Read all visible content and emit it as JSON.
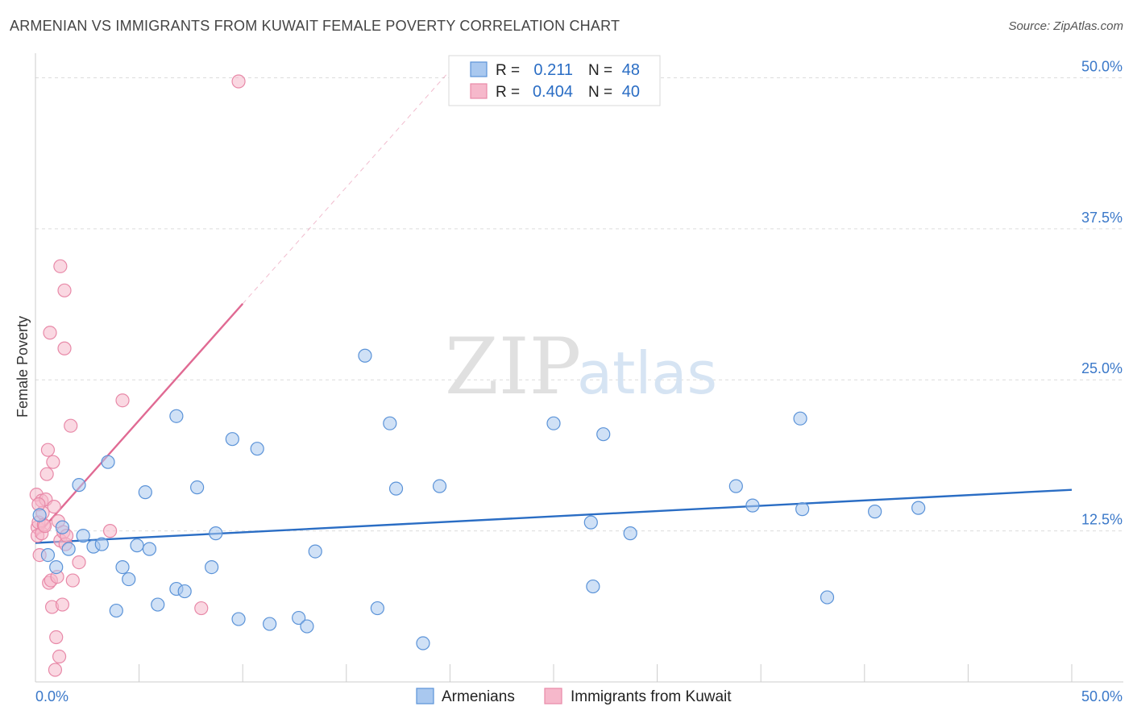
{
  "header": {
    "title": "ARMENIAN VS IMMIGRANTS FROM KUWAIT FEMALE POVERTY CORRELATION CHART",
    "source": "Source: ZipAtlas.com"
  },
  "watermark": {
    "part1": "ZIP",
    "part2": "atlas"
  },
  "stats": {
    "r_label": "R =",
    "n_label": "N =",
    "rows": [
      {
        "r": "0.211",
        "n": "48",
        "color": "#a9c8ef"
      },
      {
        "r": "0.404",
        "n": "40",
        "color": "#f6b8cb"
      }
    ]
  },
  "chart_data": {
    "type": "scatter",
    "title": "ARMENIAN VS IMMIGRANTS FROM KUWAIT FEMALE POVERTY CORRELATION CHART",
    "xlabel": "",
    "ylabel": "Female Poverty",
    "xlim": [
      0,
      50
    ],
    "ylim": [
      0,
      51.5
    ],
    "x_tick_labels": [
      "0.0%",
      "50.0%"
    ],
    "y_ticks": [
      12.5,
      25.0,
      37.5,
      50.0
    ],
    "y_tick_labels": [
      "12.5%",
      "25.0%",
      "37.5%",
      "50.0%"
    ],
    "grid": true,
    "legend_position": "bottom-center",
    "series": [
      {
        "name": "Armenians",
        "color": "#a9c8ef",
        "edge": "#5b93d8",
        "line_color": "#2a6dc4",
        "R": 0.211,
        "N": 48,
        "trend": {
          "x": [
            0,
            50
          ],
          "y": [
            11.5,
            15.9
          ],
          "dash_to": null
        },
        "points": [
          [
            0.2,
            13.8
          ],
          [
            0.6,
            10.5
          ],
          [
            1.0,
            9.5
          ],
          [
            1.3,
            12.8
          ],
          [
            1.6,
            11.0
          ],
          [
            2.1,
            16.3
          ],
          [
            2.3,
            12.1
          ],
          [
            2.8,
            11.2
          ],
          [
            3.2,
            11.4
          ],
          [
            3.5,
            18.2
          ],
          [
            3.9,
            5.9
          ],
          [
            4.2,
            9.5
          ],
          [
            4.5,
            8.5
          ],
          [
            4.9,
            11.3
          ],
          [
            5.3,
            15.7
          ],
          [
            5.5,
            11.0
          ],
          [
            5.9,
            6.4
          ],
          [
            6.8,
            22.0
          ],
          [
            6.8,
            7.7
          ],
          [
            7.2,
            7.5
          ],
          [
            7.8,
            16.1
          ],
          [
            8.5,
            9.5
          ],
          [
            8.7,
            12.3
          ],
          [
            9.5,
            20.1
          ],
          [
            9.8,
            5.2
          ],
          [
            10.7,
            19.3
          ],
          [
            11.3,
            4.8
          ],
          [
            12.7,
            5.3
          ],
          [
            13.1,
            4.6
          ],
          [
            13.5,
            10.8
          ],
          [
            15.9,
            27.0
          ],
          [
            16.5,
            6.1
          ],
          [
            17.1,
            21.4
          ],
          [
            17.4,
            16.0
          ],
          [
            18.7,
            3.2
          ],
          [
            19.5,
            16.2
          ],
          [
            25.0,
            21.4
          ],
          [
            26.8,
            13.2
          ],
          [
            26.9,
            7.9
          ],
          [
            27.4,
            20.5
          ],
          [
            28.7,
            12.3
          ],
          [
            33.8,
            16.2
          ],
          [
            34.6,
            14.6
          ],
          [
            36.9,
            21.8
          ],
          [
            37.0,
            14.3
          ],
          [
            38.2,
            7.0
          ],
          [
            40.5,
            14.1
          ],
          [
            42.6,
            14.4
          ]
        ]
      },
      {
        "name": "Immigrants from Kuwait",
        "color": "#f6b8cb",
        "edge": "#e889a8",
        "line_color": "#e06a93",
        "R": 0.404,
        "N": 40,
        "trend": {
          "x": [
            0,
            10.0
          ],
          "y": [
            12.0,
            31.3
          ],
          "dash_to": [
            20.0,
            50.6
          ]
        },
        "points": [
          [
            0.05,
            15.5
          ],
          [
            0.1,
            12.8
          ],
          [
            0.1,
            12.1
          ],
          [
            0.15,
            13.2
          ],
          [
            0.2,
            10.5
          ],
          [
            0.3,
            12.3
          ],
          [
            0.3,
            15.0
          ],
          [
            0.35,
            14.0
          ],
          [
            0.4,
            13.0
          ],
          [
            0.45,
            12.9
          ],
          [
            0.5,
            15.1
          ],
          [
            0.55,
            17.2
          ],
          [
            0.6,
            19.2
          ],
          [
            0.65,
            8.2
          ],
          [
            0.7,
            28.9
          ],
          [
            0.75,
            8.4
          ],
          [
            0.8,
            6.2
          ],
          [
            0.85,
            18.2
          ],
          [
            0.9,
            14.5
          ],
          [
            0.95,
            1.0
          ],
          [
            1.0,
            3.7
          ],
          [
            1.05,
            8.7
          ],
          [
            1.1,
            13.3
          ],
          [
            1.15,
            2.1
          ],
          [
            1.2,
            34.4
          ],
          [
            1.2,
            11.7
          ],
          [
            1.3,
            6.4
          ],
          [
            1.35,
            12.4
          ],
          [
            1.4,
            32.4
          ],
          [
            1.45,
            11.4
          ],
          [
            1.5,
            12.1
          ],
          [
            1.4,
            27.6
          ],
          [
            1.7,
            21.2
          ],
          [
            1.8,
            8.4
          ],
          [
            2.1,
            9.9
          ],
          [
            3.6,
            12.5
          ],
          [
            4.2,
            23.3
          ],
          [
            8.0,
            6.1
          ],
          [
            9.8,
            49.7
          ],
          [
            0.15,
            14.7
          ]
        ]
      }
    ]
  }
}
